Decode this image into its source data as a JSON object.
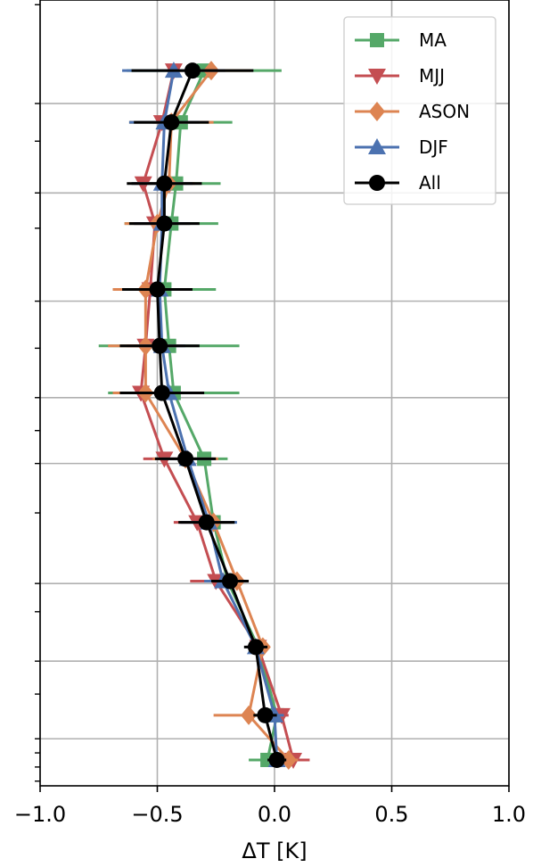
{
  "chart_data": {
    "type": "line",
    "title": "",
    "xlabel": "ΔT [K]",
    "ylabel": "",
    "xlim": [
      -1.0,
      1.0
    ],
    "xticks": [
      -1.0,
      -0.5,
      0.0,
      0.5,
      1.0
    ],
    "xtick_labels": [
      "−1.0",
      "−0.5",
      "0.0",
      "0.5",
      "1.0"
    ],
    "ylim": [
      0,
      16.7
    ],
    "y_scale": "unlabeled",
    "yticks": [
      0.1,
      0.4,
      0.7,
      1.0,
      1.95,
      2.65,
      3.7,
      4.3,
      5.8,
      6.85,
      7.55,
      8.25,
      9.3,
      10.3,
      11.85,
      12.6,
      13.7,
      14.5,
      16.6
    ],
    "y_gridlines": [
      1.0,
      2.65,
      4.3,
      6.85,
      8.25,
      10.3,
      12.6,
      14.5
    ],
    "grid": true,
    "legend_position": "top-right",
    "levels_y": [
      0.55,
      1.5,
      2.95,
      4.35,
      5.6,
      6.95,
      8.35,
      9.35,
      10.55,
      11.95,
      12.8,
      14.1,
      15.2
    ],
    "series": [
      {
        "name": "MA",
        "color": "#55a868",
        "marker": "square",
        "x": [
          -0.03,
          0.01,
          -0.07,
          -0.2,
          -0.26,
          -0.3,
          -0.43,
          -0.45,
          -0.47,
          -0.44,
          -0.42,
          -0.4,
          -0.3
        ],
        "err": [
          0.08,
          0.04,
          0.04,
          0.05,
          0.09,
          0.1,
          0.28,
          0.3,
          0.22,
          0.2,
          0.19,
          0.22,
          0.33
        ]
      },
      {
        "name": "MJJ",
        "color": "#c44e52",
        "marker": "triangle-down",
        "x": [
          0.08,
          0.03,
          -0.07,
          -0.25,
          -0.33,
          -0.47,
          -0.57,
          -0.55,
          -0.53,
          -0.51,
          -0.56,
          -0.48,
          -0.43
        ],
        "err": [
          0.07,
          0.03,
          0.05,
          0.11,
          0.1,
          0.09,
          0.07,
          0.08,
          0.09,
          0.09,
          0.04,
          0.04,
          0.03
        ]
      },
      {
        "name": "ASON",
        "color": "#dd8452",
        "marker": "diamond",
        "x": [
          0.06,
          -0.11,
          -0.05,
          -0.16,
          -0.26,
          -0.38,
          -0.55,
          -0.55,
          -0.55,
          -0.5,
          -0.45,
          -0.44,
          -0.27
        ],
        "err": [
          0.04,
          0.15,
          0.03,
          0.05,
          0.08,
          0.14,
          0.14,
          0.16,
          0.14,
          0.14,
          0.11,
          0.18,
          0.17
        ]
      },
      {
        "name": "DJF",
        "color": "#4c72b0",
        "marker": "triangle-up",
        "x": [
          0.01,
          0.0,
          -0.08,
          -0.22,
          -0.28,
          -0.37,
          -0.45,
          -0.48,
          -0.49,
          -0.48,
          -0.48,
          -0.47,
          -0.43
        ],
        "err": [
          0.04,
          0.04,
          0.04,
          0.08,
          0.12,
          0.11,
          0.1,
          0.1,
          0.12,
          0.12,
          0.13,
          0.15,
          0.22
        ]
      },
      {
        "name": "All",
        "color": "#000000",
        "marker": "circle",
        "x": [
          0.01,
          -0.04,
          -0.08,
          -0.19,
          -0.29,
          -0.38,
          -0.48,
          -0.49,
          -0.5,
          -0.47,
          -0.47,
          -0.44,
          -0.35
        ],
        "err": [
          0.04,
          0.05,
          0.05,
          0.08,
          0.12,
          0.13,
          0.18,
          0.17,
          0.15,
          0.15,
          0.16,
          0.16,
          0.26
        ]
      }
    ]
  }
}
